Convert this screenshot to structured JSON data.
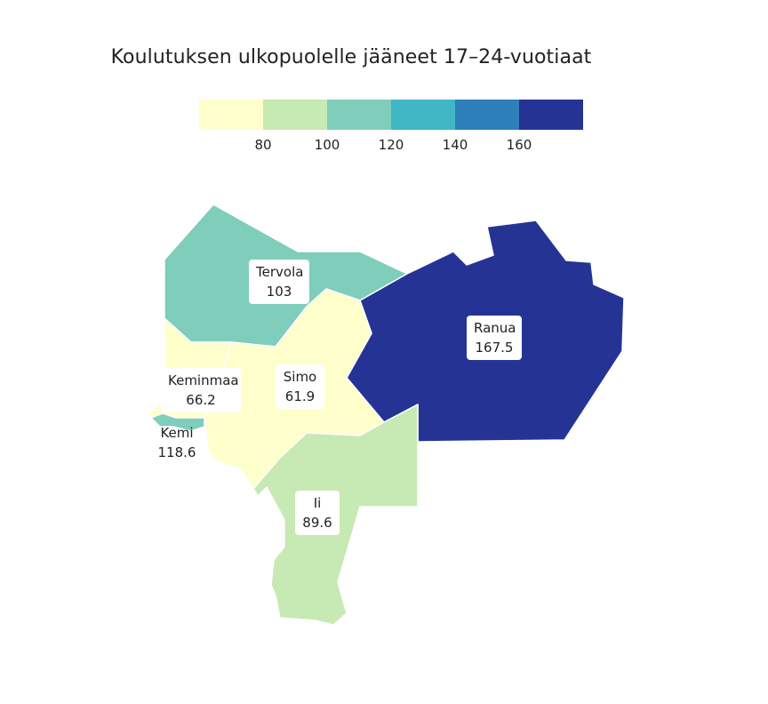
{
  "map": {
    "title": "Koulutuksen ulkopuolelle jääneet 17–24-vuotiaat",
    "legend": {
      "colors": [
        "#ffffcc",
        "#c7e9b4",
        "#7fcdbb",
        "#41b6c4",
        "#2c7fb8",
        "#253494"
      ],
      "ticks": [
        "80",
        "100",
        "120",
        "140",
        "160"
      ]
    },
    "regions": [
      {
        "name": "Tervola",
        "value": "103",
        "color": "#7fcdbb"
      },
      {
        "name": "Ranua",
        "value": "167.5",
        "color": "#253494"
      },
      {
        "name": "Keminmaa",
        "value": "66.2",
        "color": "#ffffcc"
      },
      {
        "name": "Simo",
        "value": "61.9",
        "color": "#ffffcc"
      },
      {
        "name": "Kemi",
        "value": "118.6",
        "color": "#7fcdbb"
      },
      {
        "name": "Ii",
        "value": "89.6",
        "color": "#c7e9b4"
      }
    ]
  }
}
